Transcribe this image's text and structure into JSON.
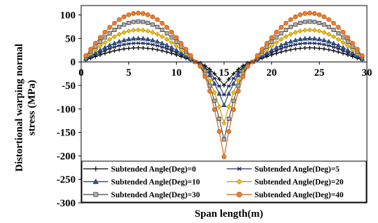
{
  "chart_data": {
    "type": "line",
    "title": "",
    "xlabel": "Span length(m)",
    "ylabel_lines": [
      "Distortional warping normal",
      "stress (MPa)"
    ],
    "xlim": [
      0,
      30
    ],
    "ylim": [
      -300,
      120
    ],
    "x_ticks": [
      0,
      5,
      10,
      15,
      20,
      25,
      30
    ],
    "y_ticks": [
      -300,
      -250,
      -200,
      -150,
      -100,
      -50,
      0,
      50,
      100
    ],
    "x_tick_labels": [
      "0",
      "5",
      "10",
      "15",
      "20",
      "25",
      "30"
    ],
    "y_tick_labels": [
      "-300",
      "-250",
      "-200",
      "-150",
      "-100",
      "-50",
      "0",
      "50",
      "100"
    ],
    "grid": false,
    "legend_position": "bottom-inside",
    "sampling": {
      "x_start": 0.5,
      "x_end": 29.5,
      "step": 0.5
    },
    "shape_points": {
      "zero_crossings": [
        12.0,
        18.0
      ],
      "peak_x": [
        6.5,
        23.5
      ],
      "trough_x": 15.0
    },
    "series": [
      {
        "name": "Subtended Angle(Deg)=0",
        "marker": "plus",
        "color": "#000000",
        "fill": "#000000",
        "peak": 30,
        "trough": -50
      },
      {
        "name": "Subtended Angle(Deg)=5",
        "marker": "star",
        "color": "#1f2a5a",
        "fill": "#1f2a5a",
        "peak": 40,
        "trough": -70
      },
      {
        "name": "Subtended Angle(Deg)=10",
        "marker": "triangle",
        "color": "#1f3864",
        "fill": "#2e5597",
        "peak": 50,
        "trough": -92
      },
      {
        "name": "Subtended Angle(Deg)=20",
        "marker": "diamond",
        "color": "#c09000",
        "fill": "#f2c200",
        "peak": 68,
        "trough": -130
      },
      {
        "name": "Subtended Angle(Deg)=30",
        "marker": "square",
        "color": "#404040",
        "fill": "#b0b0b0",
        "peak": 86,
        "trough": -165
      },
      {
        "name": "Subtended Angle(Deg)=40",
        "marker": "circle",
        "color": "#c55a11",
        "fill": "#ed7d31",
        "peak": 104,
        "trough": -202
      }
    ]
  }
}
